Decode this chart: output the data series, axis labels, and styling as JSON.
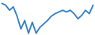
{
  "x": [
    0,
    1,
    2,
    3,
    4,
    5,
    6,
    7,
    8,
    9,
    10,
    11,
    12,
    13,
    14,
    15,
    16,
    17,
    18,
    19,
    20,
    21,
    22,
    23,
    24
  ],
  "y": [
    80,
    78,
    72,
    76,
    65,
    50,
    60,
    45,
    58,
    45,
    52,
    56,
    60,
    65,
    68,
    70,
    72,
    70,
    72,
    68,
    62,
    66,
    72,
    68,
    78
  ],
  "line_color": "#3080c8",
  "linewidth": 1.3,
  "background_color": "#ffffff"
}
